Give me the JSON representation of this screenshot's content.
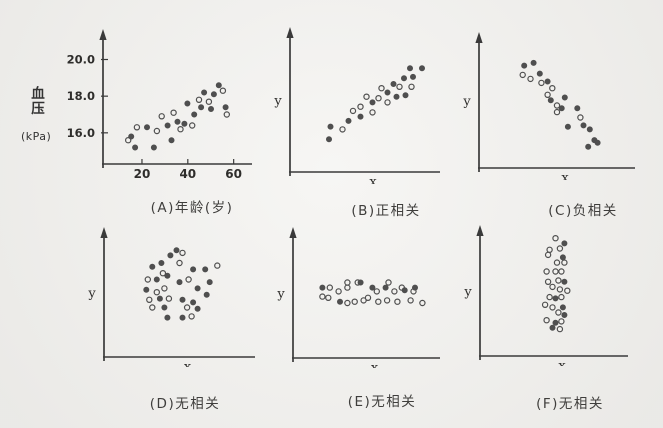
{
  "figure": {
    "background": "#f2f1ee",
    "ink_color": "#3a3a3a",
    "point_color": "#4f4f4f",
    "y_axis_unit_label": {
      "char1": "血",
      "char2": "压",
      "unit": "(kPa)"
    }
  },
  "chart_data": [
    {
      "id": "A",
      "type": "scatter",
      "caption": "(A)年龄(岁)",
      "x_label": "",
      "y_label": "",
      "xlim": [
        3,
        68
      ],
      "ylim": [
        14.3,
        21.5
      ],
      "x_ticks": {
        "values": [
          20,
          40,
          60
        ],
        "labels": [
          "20",
          "40",
          "60"
        ]
      },
      "y_ticks": {
        "values": [
          16,
          18,
          20
        ],
        "labels": [
          "16.0",
          "18.0",
          "20.0"
        ]
      },
      "grid": false,
      "points": [
        [
          14,
          15.6,
          0
        ],
        [
          15.3,
          15.8,
          1
        ],
        [
          17,
          15.2,
          1
        ],
        [
          17.8,
          16.3,
          0
        ],
        [
          22.2,
          16.3,
          1
        ],
        [
          25.2,
          15.2,
          1
        ],
        [
          26.5,
          16.1,
          0
        ],
        [
          28.6,
          16.9,
          0
        ],
        [
          31.2,
          16.4,
          1
        ],
        [
          32.9,
          15.6,
          1
        ],
        [
          33.8,
          17.1,
          0
        ],
        [
          35.5,
          16.6,
          1
        ],
        [
          36.8,
          16.2,
          0
        ],
        [
          38.5,
          16.5,
          1
        ],
        [
          39.8,
          17.6,
          1
        ],
        [
          41.9,
          16.4,
          0
        ],
        [
          42.8,
          17,
          1
        ],
        [
          44.9,
          17.8,
          0
        ],
        [
          45.8,
          17.4,
          1
        ],
        [
          47.1,
          18.2,
          1
        ],
        [
          49.2,
          17.7,
          0
        ],
        [
          50.1,
          17.3,
          1
        ],
        [
          51.4,
          18.1,
          1
        ],
        [
          53.5,
          18.6,
          1
        ],
        [
          55.3,
          18.3,
          0
        ],
        [
          56.5,
          17.4,
          1
        ],
        [
          57,
          17,
          0
        ]
      ]
    },
    {
      "id": "B",
      "type": "scatter",
      "caption": "(B)正相关",
      "x_label": "x",
      "y_label": "y",
      "xlim": [
        0,
        10
      ],
      "ylim": [
        0,
        10
      ],
      "grid": false,
      "points": [
        [
          2.7,
          3.2,
          1
        ],
        [
          2.6,
          2.3,
          1
        ],
        [
          3.5,
          3,
          0
        ],
        [
          3.9,
          3.6,
          1
        ],
        [
          4.2,
          4.3,
          0
        ],
        [
          4.7,
          3.9,
          1
        ],
        [
          4.7,
          4.6,
          0
        ],
        [
          5.1,
          5.3,
          0
        ],
        [
          5.5,
          4.9,
          1
        ],
        [
          5.5,
          4.2,
          0
        ],
        [
          5.9,
          5.2,
          0
        ],
        [
          6.1,
          5.9,
          0
        ],
        [
          6.5,
          5.6,
          1
        ],
        [
          6.5,
          4.9,
          0
        ],
        [
          6.9,
          6.2,
          1
        ],
        [
          7.1,
          5.3,
          1
        ],
        [
          7.3,
          6,
          0
        ],
        [
          7.6,
          6.6,
          1
        ],
        [
          7.7,
          5.4,
          1
        ],
        [
          8,
          7.3,
          1
        ],
        [
          8.1,
          6,
          0
        ],
        [
          8.2,
          6.7,
          1
        ],
        [
          8.8,
          7.3,
          1
        ]
      ]
    },
    {
      "id": "C",
      "type": "scatter",
      "caption": "(C)负相关",
      "x_label": "x",
      "y_label": "y",
      "xlim": [
        0,
        10
      ],
      "ylim": [
        0,
        10
      ],
      "grid": false,
      "points": [
        [
          2.9,
          7.7,
          1
        ],
        [
          3.5,
          7.9,
          1
        ],
        [
          2.8,
          7,
          0
        ],
        [
          3.3,
          6.7,
          0
        ],
        [
          3.9,
          7.1,
          1
        ],
        [
          4,
          6.4,
          0
        ],
        [
          4.4,
          6.5,
          1
        ],
        [
          4.7,
          6,
          0
        ],
        [
          4.4,
          5.5,
          0
        ],
        [
          4.6,
          5.1,
          1
        ],
        [
          5.5,
          5.3,
          1
        ],
        [
          5,
          4.7,
          0
        ],
        [
          5.3,
          4.5,
          1
        ],
        [
          5,
          4.2,
          0
        ],
        [
          6.3,
          4.5,
          1
        ],
        [
          5.7,
          3.1,
          1
        ],
        [
          6.5,
          3.8,
          0
        ],
        [
          6.7,
          3.2,
          1
        ],
        [
          7.1,
          2.9,
          1
        ],
        [
          7.4,
          2.1,
          1
        ],
        [
          7,
          1.6,
          1
        ],
        [
          7.6,
          1.9,
          1
        ]
      ]
    },
    {
      "id": "D",
      "type": "scatter",
      "caption": "(D)无相关",
      "x_label": "x",
      "y_label": "y",
      "xlim": [
        0,
        10
      ],
      "ylim": [
        0,
        10
      ],
      "grid": false,
      "points": [
        [
          4.8,
          8.4,
          1
        ],
        [
          5.2,
          8.2,
          0
        ],
        [
          4.4,
          8,
          1
        ],
        [
          3.8,
          7.4,
          1
        ],
        [
          5,
          7.4,
          0
        ],
        [
          3.2,
          7.1,
          1
        ],
        [
          5.9,
          6.9,
          1
        ],
        [
          6.7,
          6.9,
          1
        ],
        [
          3.9,
          6.6,
          0
        ],
        [
          7.5,
          7.2,
          0
        ],
        [
          2.9,
          6.1,
          0
        ],
        [
          3.5,
          6.1,
          1
        ],
        [
          4.2,
          6.4,
          1
        ],
        [
          5,
          5.9,
          1
        ],
        [
          5.6,
          6.1,
          0
        ],
        [
          7,
          5.9,
          1
        ],
        [
          2.8,
          5.3,
          1
        ],
        [
          3.5,
          5.1,
          0
        ],
        [
          4,
          5.4,
          0
        ],
        [
          6.2,
          5.4,
          1
        ],
        [
          6.8,
          4.9,
          1
        ],
        [
          3,
          4.5,
          0
        ],
        [
          3.7,
          4.6,
          1
        ],
        [
          4.3,
          4.6,
          0
        ],
        [
          5.2,
          4.5,
          1
        ],
        [
          5.9,
          4.3,
          1
        ],
        [
          3.2,
          3.9,
          0
        ],
        [
          4,
          3.9,
          1
        ],
        [
          5.5,
          3.9,
          0
        ],
        [
          6.2,
          3.8,
          1
        ],
        [
          4.2,
          3.1,
          1
        ],
        [
          5.2,
          3.1,
          1
        ],
        [
          5.8,
          3.2,
          0
        ]
      ]
    },
    {
      "id": "E",
      "type": "scatter",
      "caption": "(E)无相关",
      "x_label": "x",
      "y_label": "y",
      "xlim": [
        0,
        10
      ],
      "ylim": [
        0,
        10
      ],
      "grid": false,
      "points": [
        [
          2,
          5.5,
          1
        ],
        [
          2.5,
          5.5,
          0
        ],
        [
          2,
          4.8,
          0
        ],
        [
          2.4,
          4.7,
          0
        ],
        [
          3.1,
          5.2,
          0
        ],
        [
          3.7,
          5.5,
          0
        ],
        [
          3.7,
          5.9,
          0
        ],
        [
          3.2,
          4.4,
          1
        ],
        [
          3.7,
          4.3,
          0
        ],
        [
          4.4,
          5.9,
          0
        ],
        [
          4.6,
          5.9,
          1
        ],
        [
          4.2,
          4.4,
          0
        ],
        [
          4.8,
          4.5,
          0
        ],
        [
          5.1,
          4.7,
          0
        ],
        [
          5.4,
          5.5,
          1
        ],
        [
          5.7,
          5.2,
          0
        ],
        [
          5.8,
          4.4,
          0
        ],
        [
          6.3,
          5.5,
          1
        ],
        [
          6.5,
          5.9,
          0
        ],
        [
          6.4,
          4.5,
          0
        ],
        [
          6.9,
          5.2,
          0
        ],
        [
          7.1,
          4.4,
          0
        ],
        [
          7.4,
          5.5,
          0
        ],
        [
          7.6,
          5.3,
          1
        ],
        [
          8,
          4.5,
          0
        ],
        [
          8.2,
          5.2,
          0
        ],
        [
          8.3,
          5.5,
          1
        ],
        [
          8.8,
          4.3,
          0
        ]
      ]
    },
    {
      "id": "F",
      "type": "scatter",
      "caption": "(F)无相关",
      "x_label": "x",
      "y_label": "y",
      "xlim": [
        0,
        10
      ],
      "ylim": [
        0,
        10
      ],
      "grid": false,
      "points": [
        [
          5.1,
          9.2,
          0
        ],
        [
          5.7,
          8.8,
          1
        ],
        [
          4.7,
          8.3,
          0
        ],
        [
          5.4,
          8.4,
          0
        ],
        [
          4.6,
          7.9,
          0
        ],
        [
          5.6,
          7.7,
          1
        ],
        [
          5.2,
          7.3,
          0
        ],
        [
          5.7,
          7.3,
          0
        ],
        [
          4.5,
          6.6,
          0
        ],
        [
          5.1,
          6.6,
          0
        ],
        [
          5.5,
          6.6,
          0
        ],
        [
          4.6,
          5.8,
          0
        ],
        [
          5.3,
          5.9,
          0
        ],
        [
          5.7,
          5.8,
          1
        ],
        [
          4.9,
          5.4,
          0
        ],
        [
          5.4,
          5.2,
          0
        ],
        [
          5.9,
          5.1,
          0
        ],
        [
          4.7,
          4.6,
          0
        ],
        [
          5.1,
          4.5,
          1
        ],
        [
          5.5,
          4.6,
          0
        ],
        [
          4.4,
          4,
          0
        ],
        [
          4.9,
          3.8,
          0
        ],
        [
          5.6,
          3.8,
          1
        ],
        [
          5.3,
          3.4,
          0
        ],
        [
          5.7,
          3.2,
          1
        ],
        [
          4.5,
          2.8,
          0
        ],
        [
          5.1,
          2.6,
          1
        ],
        [
          5.5,
          2.7,
          0
        ],
        [
          4.9,
          2.2,
          1
        ],
        [
          5.4,
          2.1,
          0
        ]
      ]
    }
  ]
}
